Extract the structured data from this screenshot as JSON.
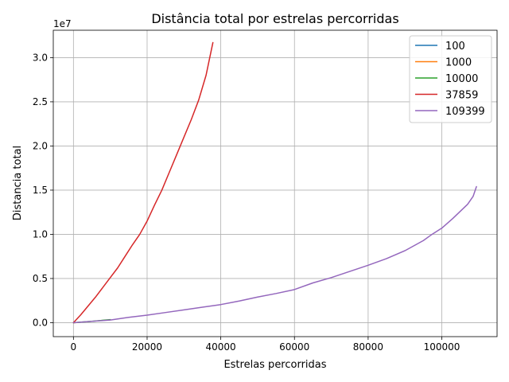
{
  "chart_data": {
    "type": "line",
    "title": "Distância total por estrelas percorridas",
    "xlabel": "Estrelas percorridas",
    "ylabel": "Distancia total",
    "y_offset_label": "1e7",
    "xlim": [
      -5470,
      115000
    ],
    "ylim": [
      -1580000,
      33100000
    ],
    "x_ticks": [
      0,
      20000,
      40000,
      60000,
      80000,
      100000
    ],
    "x_tick_labels": [
      "0",
      "20000",
      "40000",
      "60000",
      "80000",
      "100000"
    ],
    "y_ticks": [
      0,
      5000000,
      10000000,
      15000000,
      20000000,
      25000000,
      30000000
    ],
    "y_tick_labels": [
      "0.0",
      "0.5",
      "1.0",
      "1.5",
      "2.0",
      "2.5",
      "3.0"
    ],
    "grid": true,
    "legend": "top-right",
    "series": [
      {
        "name": "100",
        "color": "#1f77b4",
        "x": [
          0,
          100
        ],
        "y": [
          0,
          3000
        ]
      },
      {
        "name": "1000",
        "color": "#ff7f0e",
        "x": [
          0,
          1000
        ],
        "y": [
          0,
          20000
        ]
      },
      {
        "name": "10000",
        "color": "#2ca02c",
        "x": [
          0,
          5000,
          10000
        ],
        "y": [
          0,
          150000,
          350000
        ]
      },
      {
        "name": "37859",
        "color": "#d62728",
        "x": [
          0,
          2000,
          4000,
          6000,
          8000,
          10000,
          12000,
          14000,
          16000,
          18000,
          20000,
          22000,
          24000,
          26000,
          28000,
          30000,
          32000,
          34000,
          36000,
          37000,
          37859
        ],
        "y": [
          0,
          900000,
          1900000,
          2900000,
          4000000,
          5100000,
          6200000,
          7500000,
          8800000,
          10000000,
          11500000,
          13300000,
          15000000,
          17000000,
          19000000,
          21000000,
          23000000,
          25200000,
          28000000,
          30000000,
          31700000
        ]
      },
      {
        "name": "109399",
        "color": "#9467bd",
        "x": [
          0,
          5000,
          10000,
          15000,
          20000,
          25000,
          30000,
          35000,
          40000,
          45000,
          50000,
          55000,
          60000,
          65000,
          70000,
          75000,
          80000,
          85000,
          90000,
          95000,
          97000,
          100000,
          103000,
          105000,
          107000,
          108500,
          109399
        ],
        "y": [
          0,
          150000,
          300000,
          600000,
          850000,
          1150000,
          1450000,
          1750000,
          2050000,
          2450000,
          2900000,
          3300000,
          3750000,
          4500000,
          5100000,
          5800000,
          6500000,
          7250000,
          8150000,
          9300000,
          9900000,
          10700000,
          11800000,
          12600000,
          13400000,
          14300000,
          15400000
        ]
      }
    ]
  }
}
